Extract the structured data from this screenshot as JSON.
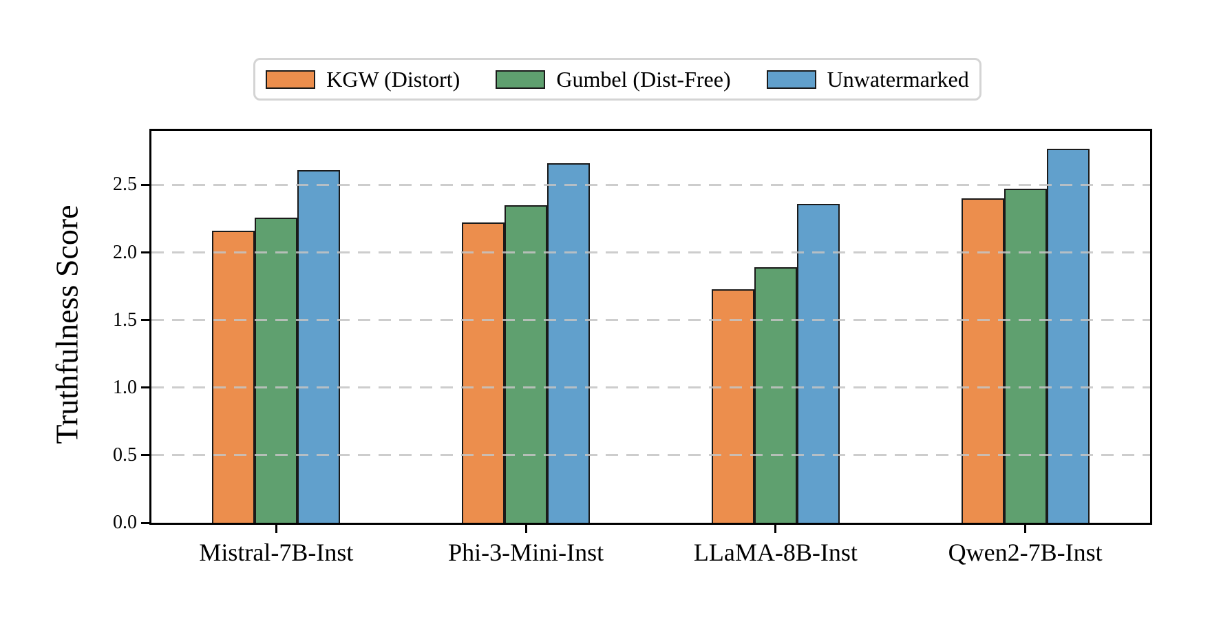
{
  "figure": {
    "background": "#ffffff"
  },
  "axes": {
    "spine_color": "#000000",
    "grid_color": "#c4c4c4",
    "bar_edge_color": "#1a1a1a"
  },
  "legend": {
    "border_color": "#d4d4d4",
    "position": "top center"
  },
  "chart_data": {
    "type": "bar",
    "title": "",
    "xlabel": "",
    "ylabel": "Truthfulness Score",
    "categories": [
      "Mistral-7B-Inst",
      "Phi-3-Mini-Inst",
      "LLaMA-8B-Inst",
      "Qwen2-7B-Inst"
    ],
    "series": [
      {
        "name": "KGW (Distort)",
        "color": "#EC8E4D",
        "values": [
          2.16,
          2.22,
          1.73,
          2.4
        ]
      },
      {
        "name": "Gumbel (Dist-Free)",
        "color": "#5FA06F",
        "values": [
          2.26,
          2.35,
          1.89,
          2.47
        ]
      },
      {
        "name": "Unwatermarked",
        "color": "#61A0CC",
        "values": [
          2.61,
          2.66,
          2.36,
          2.77
        ]
      }
    ],
    "ylim": [
      0,
      2.9
    ],
    "yticks": [
      0.0,
      0.5,
      1.0,
      1.5,
      2.0,
      2.5
    ],
    "grid": "horizontal dashed, drawn over bars",
    "legend_position": "top center",
    "legend_labels": [
      "KGW (Distort)",
      "Gumbel (Dist-Free)",
      "Unwatermarked"
    ]
  }
}
